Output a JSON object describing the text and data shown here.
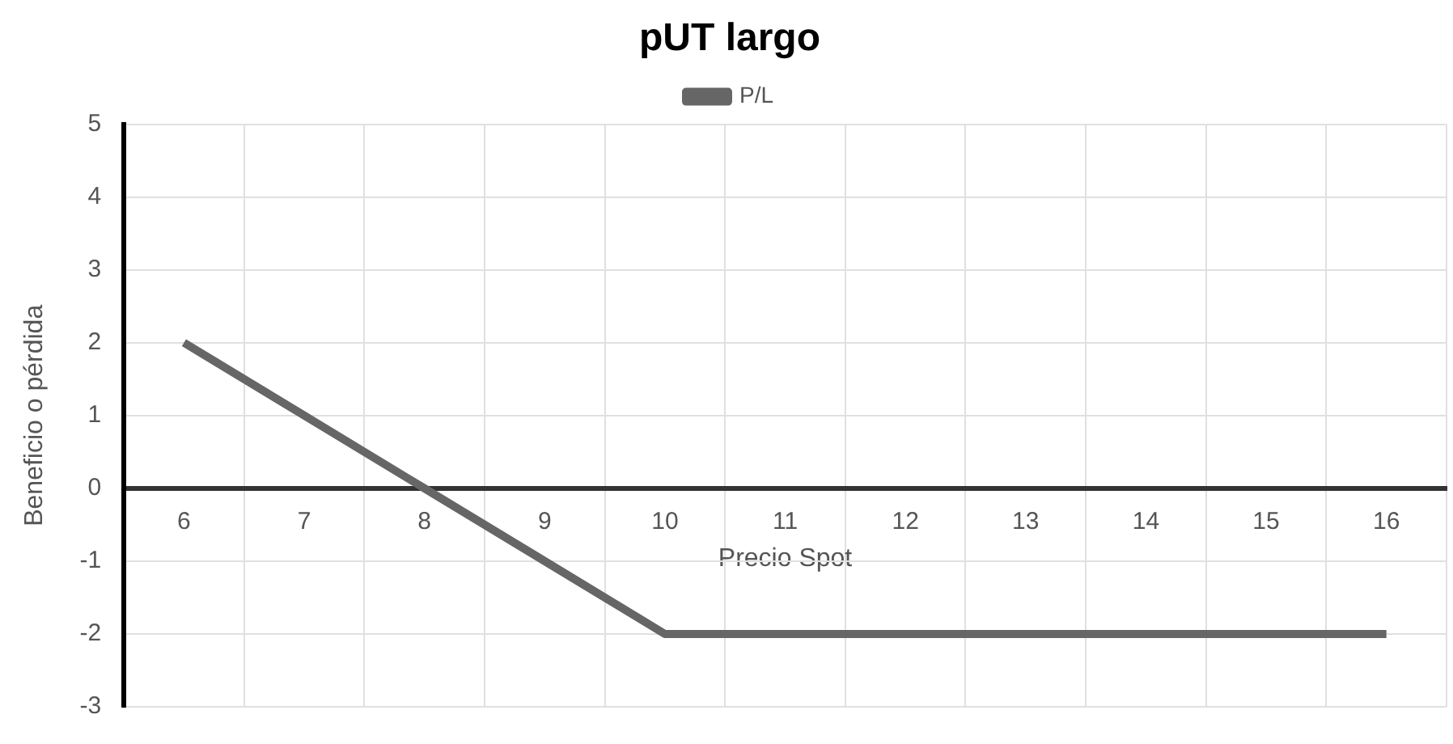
{
  "chart_data": {
    "type": "line",
    "title": "pUT largo",
    "xlabel": "Precio Spot",
    "ylabel": "Beneficio o pérdida",
    "categories": [
      "6",
      "7",
      "8",
      "9",
      "10",
      "11",
      "12",
      "13",
      "14",
      "15",
      "16"
    ],
    "series": [
      {
        "name": "P/L",
        "color": "#666666",
        "values": [
          2,
          1,
          0,
          -1,
          -2,
          -2,
          -2,
          -2,
          -2,
          -2,
          -2
        ]
      }
    ],
    "ylim": [
      -3,
      5
    ],
    "yticks": [
      -3,
      -2,
      -1,
      0,
      1,
      2,
      3,
      4,
      5
    ],
    "grid": true,
    "legend": "top",
    "marker": "none",
    "line_style": "solid"
  }
}
